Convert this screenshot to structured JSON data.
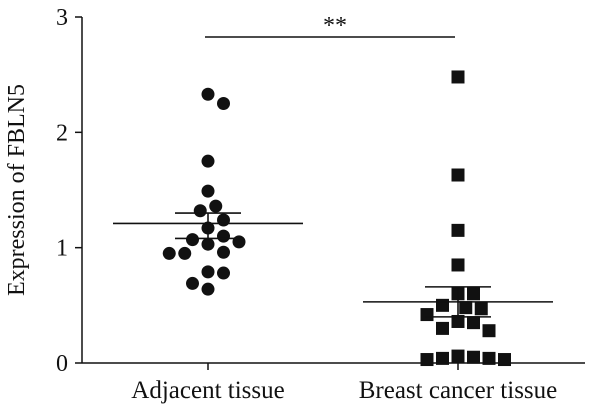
{
  "chart_data": {
    "type": "scatter",
    "title": "",
    "xlabel": "",
    "ylabel": "Expression of FBLN5",
    "ylim": [
      0,
      3
    ],
    "yticks": [
      "0",
      "1",
      "2",
      "3"
    ],
    "categories": [
      "Adjacent tissue",
      "Breast cancer tissue"
    ],
    "series": [
      {
        "category": "Adjacent tissue",
        "marker": "circle",
        "mean": 1.21,
        "sem_upper": 1.3,
        "sem_lower": 1.08,
        "points": [
          2.33,
          2.25,
          1.75,
          1.49,
          1.36,
          1.32,
          1.24,
          1.17,
          1.1,
          1.07,
          1.05,
          1.03,
          0.96,
          0.95,
          0.95,
          0.79,
          0.78,
          0.69,
          0.64
        ]
      },
      {
        "category": "Breast cancer tissue",
        "marker": "square",
        "mean": 0.53,
        "sem_upper": 0.66,
        "sem_lower": 0.4,
        "points": [
          2.48,
          1.63,
          1.15,
          0.85,
          0.6,
          0.6,
          0.5,
          0.48,
          0.47,
          0.42,
          0.36,
          0.35,
          0.3,
          0.28,
          0.06,
          0.05,
          0.04,
          0.04,
          0.03,
          0.03
        ]
      }
    ],
    "significance": {
      "label": "**",
      "from": "Adjacent tissue",
      "to": "Breast cancer tissue"
    },
    "colors": {
      "markers": "#111111",
      "axes": "#111111",
      "background": "#ffffff"
    }
  }
}
